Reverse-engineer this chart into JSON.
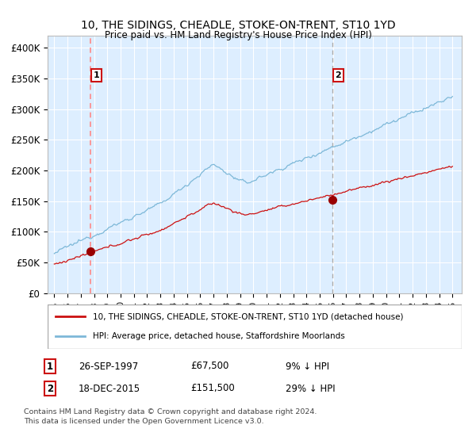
{
  "title": "10, THE SIDINGS, CHEADLE, STOKE-ON-TRENT, ST10 1YD",
  "subtitle": "Price paid vs. HM Land Registry's House Price Index (HPI)",
  "legend_line1": "10, THE SIDINGS, CHEADLE, STOKE-ON-TRENT, ST10 1YD (detached house)",
  "legend_line2": "HPI: Average price, detached house, Staffordshire Moorlands",
  "footnote1": "Contains HM Land Registry data © Crown copyright and database right 2024.",
  "footnote2": "This data is licensed under the Open Government Licence v3.0.",
  "transaction1_date": "26-SEP-1997",
  "transaction1_price": "£67,500",
  "transaction1_hpi": "9% ↓ HPI",
  "transaction1_year": 1997.73,
  "transaction1_value": 67500,
  "transaction2_date": "18-DEC-2015",
  "transaction2_price": "£151,500",
  "transaction2_hpi": "29% ↓ HPI",
  "transaction2_year": 2015.96,
  "transaction2_value": 151500,
  "hpi_color": "#7db8d8",
  "price_color": "#cc1111",
  "vline1_color": "#ff8888",
  "vline1_style": "--",
  "vline2_color": "#aaaaaa",
  "vline2_style": "--",
  "marker_color": "#990000",
  "ylim_min": 0,
  "ylim_max": 420000,
  "yticks": [
    0,
    50000,
    100000,
    150000,
    200000,
    250000,
    300000,
    350000,
    400000
  ],
  "ytick_labels": [
    "£0",
    "£50K",
    "£100K",
    "£150K",
    "£200K",
    "£250K",
    "£300K",
    "£350K",
    "£400K"
  ],
  "xlim_min": 1994.5,
  "xlim_max": 2025.7,
  "background_color": "#ffffff",
  "plot_bg_color": "#ddeeff",
  "grid_color": "#ffffff"
}
